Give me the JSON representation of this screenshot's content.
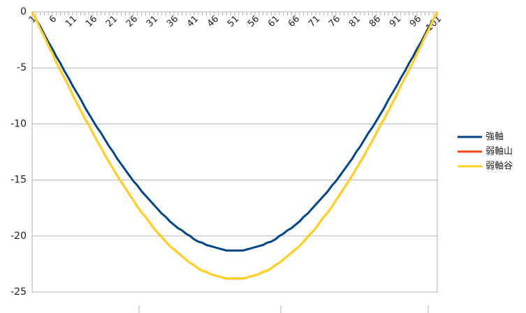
{
  "chart_data": {
    "type": "line",
    "categories": [
      1,
      null,
      null,
      null,
      null,
      6,
      null,
      null,
      null,
      null,
      11,
      null,
      null,
      null,
      null,
      16,
      null,
      null,
      null,
      null,
      21,
      null,
      null,
      null,
      null,
      26,
      null,
      null,
      null,
      null,
      31,
      null,
      null,
      null,
      null,
      36,
      null,
      null,
      null,
      null,
      41,
      null,
      null,
      null,
      null,
      46,
      null,
      null,
      null,
      null,
      51,
      null,
      null,
      null,
      null,
      56,
      null,
      null,
      null,
      null,
      61,
      null,
      null,
      null,
      null,
      66,
      null,
      null,
      null,
      null,
      71,
      null,
      null,
      null,
      null,
      76,
      null,
      null,
      null,
      null,
      81,
      null,
      null,
      null,
      null,
      86,
      null,
      null,
      null,
      null,
      91,
      null,
      null,
      null,
      null,
      96,
      null,
      null,
      null,
      null,
      101
    ],
    "series": [
      {
        "name": "強軸",
        "color": "#004586",
        "values": [
          0,
          -0.7,
          -1.3,
          -2.0,
          -2.7,
          -3.3,
          -4.0,
          -4.6,
          -5.3,
          -5.9,
          -6.6,
          -7.2,
          -7.8,
          -8.5,
          -9.1,
          -9.7,
          -10.3,
          -10.8,
          -11.4,
          -12.0,
          -12.5,
          -13.1,
          -13.6,
          -14.1,
          -14.6,
          -15.1,
          -15.5,
          -16.0,
          -16.4,
          -16.8,
          -17.2,
          -17.6,
          -18.0,
          -18.3,
          -18.7,
          -19.0,
          -19.3,
          -19.5,
          -19.8,
          -20.0,
          -20.3,
          -20.5,
          -20.6,
          -20.8,
          -20.9,
          -21.0,
          -21.1,
          -21.2,
          -21.3,
          -21.3,
          -21.3,
          -21.3,
          -21.3,
          -21.2,
          -21.1,
          -21.0,
          -20.9,
          -20.8,
          -20.6,
          -20.5,
          -20.3,
          -20.0,
          -19.8,
          -19.5,
          -19.3,
          -19.0,
          -18.7,
          -18.3,
          -18.0,
          -17.6,
          -17.2,
          -16.8,
          -16.4,
          -16.0,
          -15.5,
          -15.1,
          -14.6,
          -14.1,
          -13.6,
          -13.1,
          -12.5,
          -12.0,
          -11.4,
          -10.8,
          -10.3,
          -9.7,
          -9.1,
          -8.5,
          -7.8,
          -7.2,
          -6.6,
          -5.9,
          -5.3,
          -4.6,
          -4.0,
          -3.3,
          -2.7,
          -2.0,
          -1.3,
          -0.7,
          0
        ]
      },
      {
        "name": "弱軸山",
        "color": "#ff420e",
        "values": [
          0,
          -0.7,
          -1.5,
          -2.2,
          -3.0,
          -3.7,
          -4.5,
          -5.2,
          -5.9,
          -6.6,
          -7.4,
          -8.1,
          -8.8,
          -9.5,
          -10.1,
          -10.8,
          -11.5,
          -12.1,
          -12.8,
          -13.4,
          -14.0,
          -14.6,
          -15.2,
          -15.7,
          -16.3,
          -16.8,
          -17.4,
          -17.9,
          -18.3,
          -18.8,
          -19.3,
          -19.7,
          -20.1,
          -20.5,
          -20.9,
          -21.2,
          -21.5,
          -21.8,
          -22.1,
          -22.4,
          -22.6,
          -22.9,
          -23.1,
          -23.2,
          -23.4,
          -23.5,
          -23.6,
          -23.7,
          -23.8,
          -23.8,
          -23.8,
          -23.8,
          -23.8,
          -23.7,
          -23.6,
          -23.5,
          -23.4,
          -23.2,
          -23.1,
          -22.9,
          -22.6,
          -22.4,
          -22.1,
          -21.8,
          -21.5,
          -21.2,
          -20.9,
          -20.5,
          -20.1,
          -19.7,
          -19.3,
          -18.8,
          -18.3,
          -17.9,
          -17.4,
          -16.8,
          -16.3,
          -15.7,
          -15.2,
          -14.6,
          -14.0,
          -13.4,
          -12.8,
          -12.1,
          -11.5,
          -10.8,
          -10.1,
          -9.5,
          -8.8,
          -8.1,
          -7.4,
          -6.6,
          -5.9,
          -5.2,
          -4.5,
          -3.7,
          -3.0,
          -2.2,
          -1.5,
          -0.7,
          0
        ]
      },
      {
        "name": "弱軸谷",
        "color": "#ffd320",
        "values": [
          0,
          -0.7,
          -1.5,
          -2.2,
          -3.0,
          -3.7,
          -4.5,
          -5.2,
          -5.9,
          -6.6,
          -7.4,
          -8.1,
          -8.8,
          -9.5,
          -10.1,
          -10.8,
          -11.5,
          -12.1,
          -12.8,
          -13.4,
          -14.0,
          -14.6,
          -15.2,
          -15.7,
          -16.3,
          -16.8,
          -17.4,
          -17.9,
          -18.3,
          -18.8,
          -19.3,
          -19.7,
          -20.1,
          -20.5,
          -20.9,
          -21.2,
          -21.5,
          -21.8,
          -22.1,
          -22.4,
          -22.6,
          -22.9,
          -23.1,
          -23.2,
          -23.4,
          -23.5,
          -23.6,
          -23.7,
          -23.8,
          -23.8,
          -23.8,
          -23.8,
          -23.8,
          -23.7,
          -23.6,
          -23.5,
          -23.4,
          -23.2,
          -23.1,
          -22.9,
          -22.6,
          -22.4,
          -22.1,
          -21.8,
          -21.5,
          -21.2,
          -20.9,
          -20.5,
          -20.1,
          -19.7,
          -19.3,
          -18.8,
          -18.3,
          -17.9,
          -17.4,
          -16.8,
          -16.3,
          -15.7,
          -15.2,
          -14.6,
          -14.0,
          -13.4,
          -12.8,
          -12.1,
          -11.5,
          -10.8,
          -10.1,
          -9.5,
          -8.8,
          -8.1,
          -7.4,
          -6.6,
          -5.9,
          -5.2,
          -4.5,
          -3.7,
          -3.0,
          -2.2,
          -1.5,
          -0.7,
          0
        ]
      }
    ],
    "ylim": [
      -25,
      0
    ],
    "yticks": [
      -25,
      -20,
      -15,
      -10,
      -5,
      0
    ],
    "grid": true,
    "legend": "right"
  }
}
